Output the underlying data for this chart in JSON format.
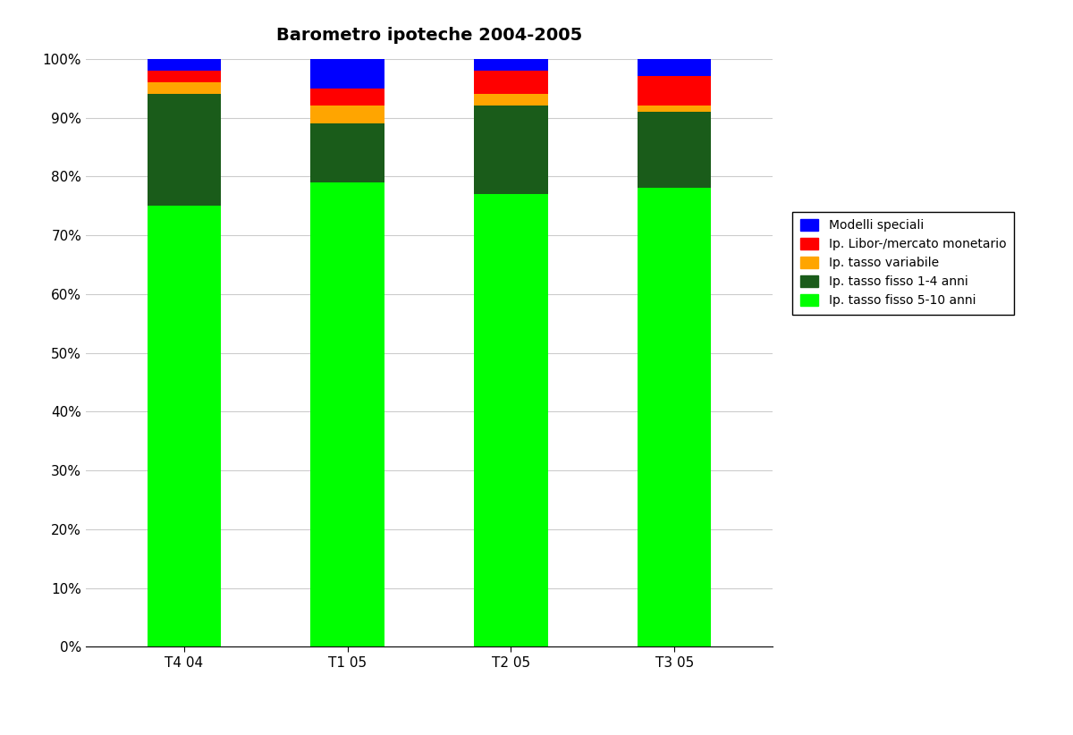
{
  "title": "Barometro ipoteche 2004-2005",
  "categories": [
    "T4 04",
    "T1 05",
    "T2 05",
    "T3 05"
  ],
  "series": [
    {
      "label": "Ip. tasso fisso 5-10 anni",
      "color": "#00FF00",
      "values": [
        75,
        79,
        77,
        78
      ]
    },
    {
      "label": "Ip. tasso fisso 1-4 anni",
      "color": "#1A5C1A",
      "values": [
        19,
        10,
        15,
        13
      ]
    },
    {
      "label": "Ip. tasso variabile",
      "color": "#FFA500",
      "values": [
        2,
        3,
        2,
        1
      ]
    },
    {
      "label": "Ip. Libor-/mercato monetario",
      "color": "#FF0000",
      "values": [
        2,
        3,
        4,
        5
      ]
    },
    {
      "label": "Modelli speciali",
      "color": "#0000FF",
      "values": [
        2,
        5,
        2,
        3
      ]
    }
  ],
  "ylim": [
    0,
    100
  ],
  "yticks": [
    0,
    10,
    20,
    30,
    40,
    50,
    60,
    70,
    80,
    90,
    100
  ],
  "ytick_labels": [
    "0%",
    "10%",
    "20%",
    "30%",
    "40%",
    "50%",
    "60%",
    "70%",
    "80%",
    "90%",
    "100%"
  ],
  "background_color": "#FFFFFF",
  "grid_color": "#CCCCCC",
  "title_fontsize": 14,
  "bar_width": 0.45,
  "legend_fontsize": 10,
  "tick_fontsize": 11
}
